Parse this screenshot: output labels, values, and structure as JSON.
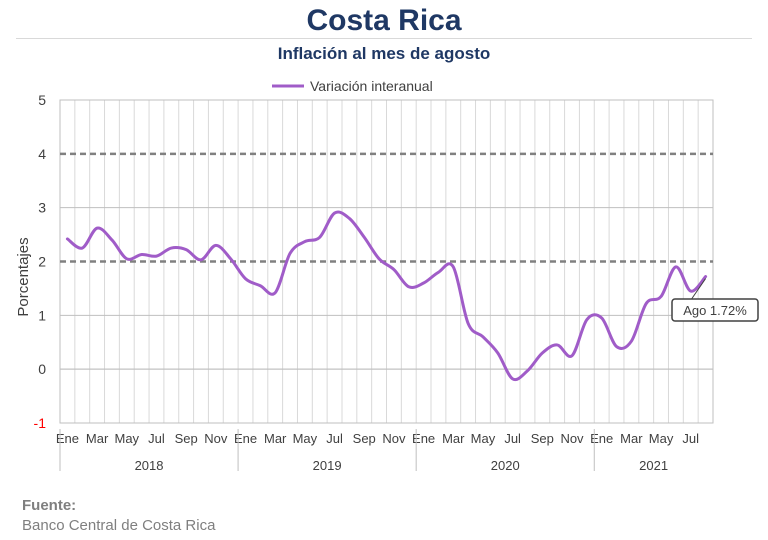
{
  "header": {
    "title": "Costa Rica",
    "subtitle": "Inflación al mes de agosto"
  },
  "footer": {
    "source_label": "Fuente:",
    "source_text": "Banco Central de Costa Rica"
  },
  "chart_data": {
    "type": "line",
    "ylabel": "Porcentajes",
    "ylim": [
      -1,
      5
    ],
    "yticks": [
      -1,
      0,
      1,
      2,
      3,
      4,
      5
    ],
    "ytick_labels": [
      "-1",
      "0",
      "1",
      "2",
      "3",
      "4",
      "5"
    ],
    "month_tick_labels": [
      "Ene",
      "Mar",
      "May",
      "Jul",
      "Sep",
      "Nov",
      "Ene",
      "Mar",
      "May",
      "Jul",
      "Sep",
      "Nov",
      "Ene",
      "Mar",
      "May",
      "Jul",
      "Sep",
      "Nov",
      "Ene",
      "Mar",
      "May",
      "Jul"
    ],
    "month_tick_index": [
      0,
      2,
      4,
      6,
      8,
      10,
      12,
      14,
      16,
      18,
      20,
      22,
      24,
      26,
      28,
      30,
      32,
      34,
      36,
      38,
      40,
      42
    ],
    "years": [
      {
        "label": "2018",
        "start": 0,
        "count": 12
      },
      {
        "label": "2019",
        "start": 12,
        "count": 12
      },
      {
        "label": "2020",
        "start": 24,
        "count": 12
      },
      {
        "label": "2021",
        "start": 36,
        "count": 8
      }
    ],
    "reference_lines": [
      2,
      4
    ],
    "grid": true,
    "legend_position": "top",
    "colors": {
      "series": "#a05cc8",
      "reference": "#808080",
      "negative_tick": "#ff0000"
    },
    "series": [
      {
        "name": "Variación interanual",
        "values": [
          2.42,
          2.25,
          2.62,
          2.4,
          2.05,
          2.13,
          2.1,
          2.25,
          2.22,
          2.03,
          2.3,
          2.05,
          1.68,
          1.55,
          1.42,
          2.15,
          2.37,
          2.45,
          2.9,
          2.8,
          2.45,
          2.05,
          1.85,
          1.53,
          1.6,
          1.8,
          1.9,
          0.85,
          0.6,
          0.3,
          -0.18,
          -0.03,
          0.3,
          0.45,
          0.25,
          0.92,
          0.95,
          0.42,
          0.52,
          1.22,
          1.35,
          1.9,
          1.45,
          1.72
        ]
      }
    ],
    "annotation": {
      "text": "Ago 1.72%",
      "index": 43,
      "value": 1.72
    }
  }
}
